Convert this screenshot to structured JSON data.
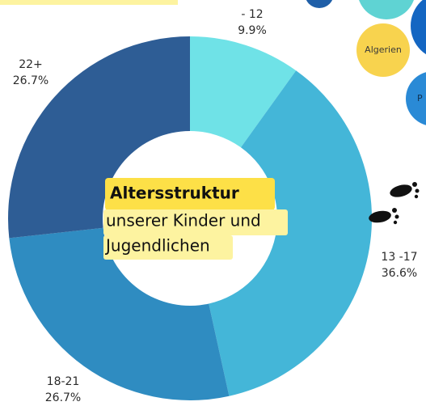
{
  "chart_data": {
    "type": "pie",
    "donut": true,
    "categories": [
      "- 12",
      "13 -17",
      "18-21",
      "22+"
    ],
    "values": [
      9.9,
      36.6,
      26.7,
      26.7
    ],
    "value_labels": [
      "9.9%",
      "36.6%",
      "26.7%",
      "26.7%"
    ],
    "colors": [
      "#6fe2e7",
      "#44b6d8",
      "#2f8cc1",
      "#2e5d95"
    ],
    "center_text": [
      "Altersstruktur",
      "unserer Kinder und",
      "Jugendlichen"
    ],
    "annotations": [
      "Algerien",
      "P"
    ]
  }
}
